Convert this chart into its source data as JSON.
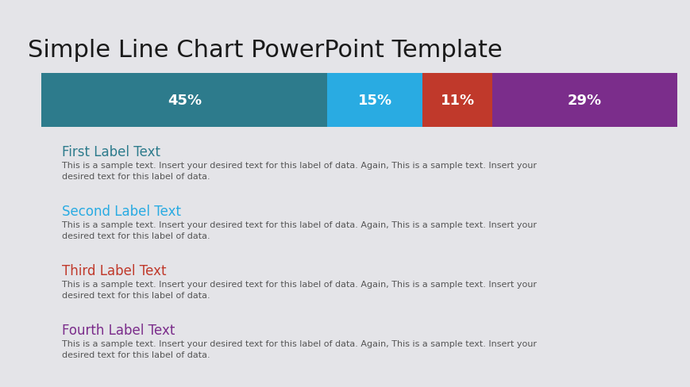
{
  "title": "Simple Line Chart PowerPoint Template",
  "title_fontsize": 22,
  "title_color": "#1a1a1a",
  "background_color": "#e4e4e8",
  "bar_values": [
    45,
    15,
    11,
    29
  ],
  "bar_labels": [
    "45%",
    "15%",
    "11%",
    "29%"
  ],
  "bar_colors": [
    "#2d7b8c",
    "#29abe2",
    "#c0392b",
    "#7b2d8b"
  ],
  "label_entries": [
    {
      "title": "First Label Text",
      "title_color": "#2d7b8c",
      "bar_color": "#2d7b8c",
      "body": "This is a sample text. Insert your desired text for this label of data. Again, This is a sample text. Insert your\ndesired text for this label of data."
    },
    {
      "title": "Second Label Text",
      "title_color": "#29abe2",
      "bar_color": "#29abe2",
      "body": "This is a sample text. Insert your desired text for this label of data. Again, This is a sample text. Insert your\ndesired text for this label of data."
    },
    {
      "title": "Third Label Text",
      "title_color": "#c0392b",
      "bar_color": "#c0392b",
      "body": "This is a sample text. Insert your desired text for this label of data. Again, This is a sample text. Insert your\ndesired text for this label of data."
    },
    {
      "title": "Fourth Label Text",
      "title_color": "#7b2d8b",
      "bar_color": "#7b2d8b",
      "body": "This is a sample text. Insert your desired text for this label of data. Again, This is a sample text. Insert your\ndesired text for this label of data."
    }
  ],
  "body_fontsize": 8,
  "label_title_fontsize": 12,
  "bar_label_fontsize": 13
}
